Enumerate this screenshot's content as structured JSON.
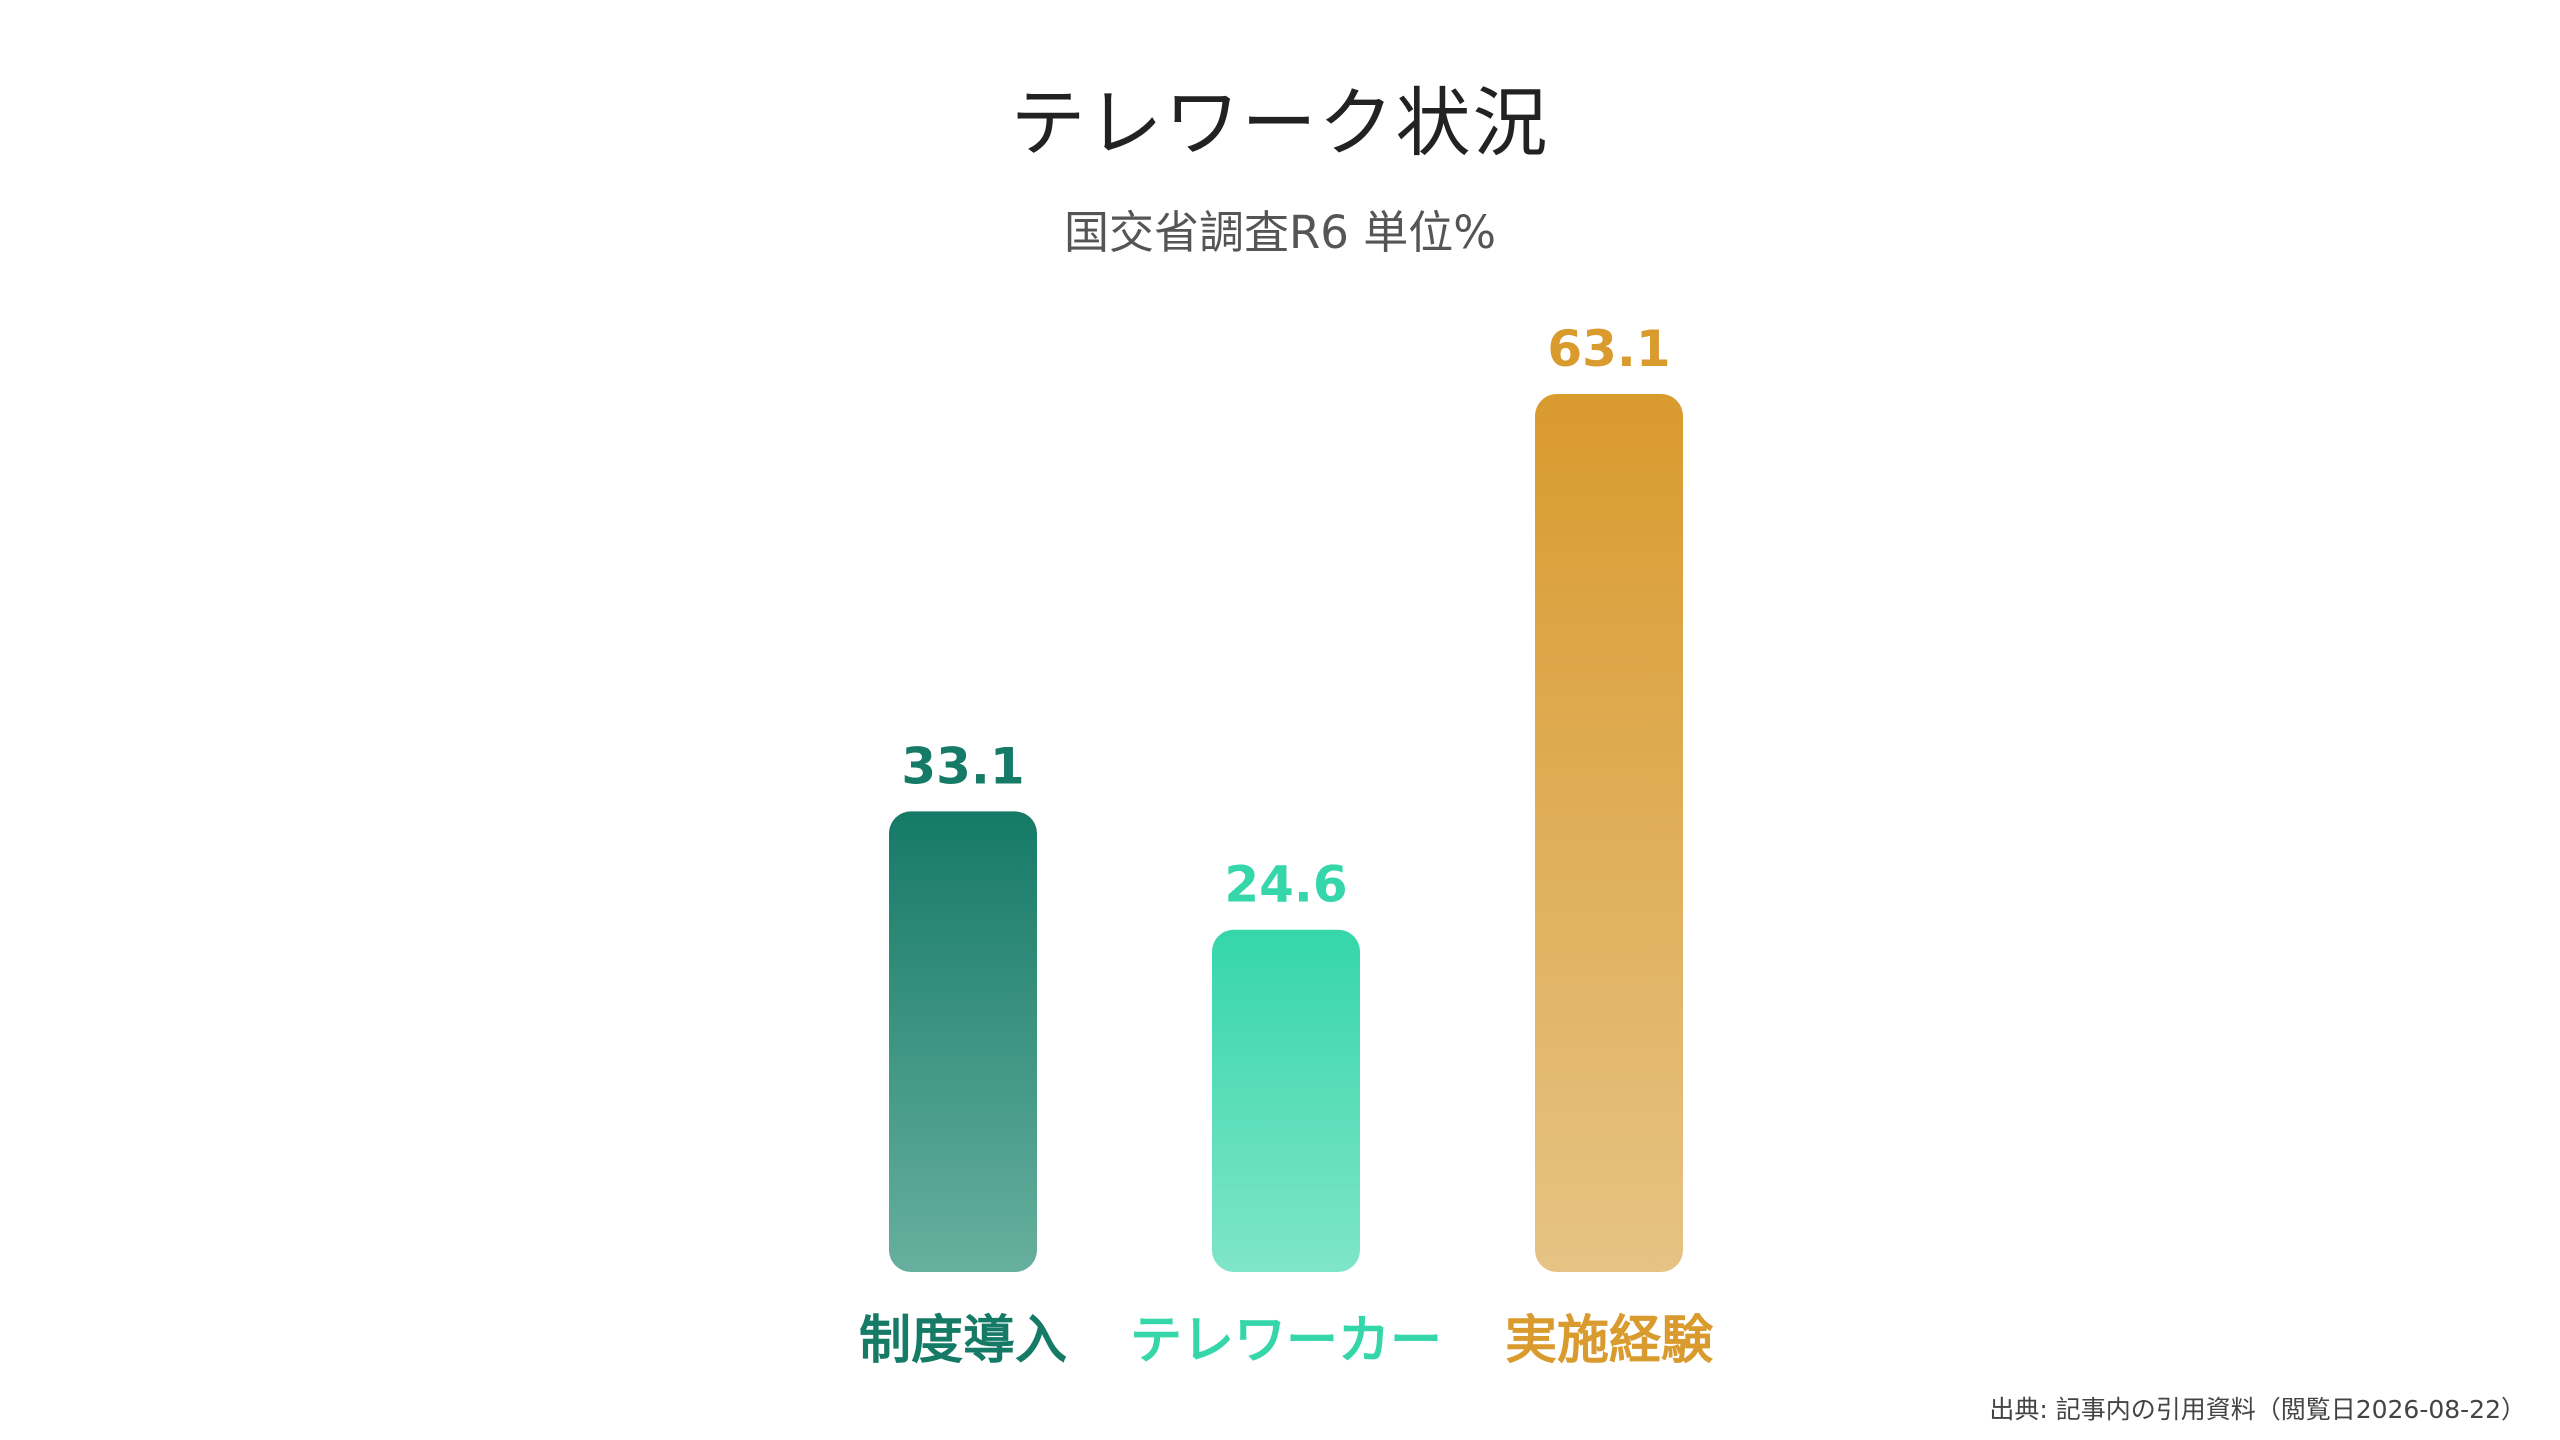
{
  "chart_data": {
    "type": "bar",
    "title": "テレワーク状況",
    "subtitle": "国交省調査R6 単位%",
    "categories": [
      "制度導入",
      "テレワーカー",
      "実施経験"
    ],
    "values": [
      33.1,
      24.6,
      63.1
    ],
    "value_labels": [
      "33.1",
      "24.6",
      "63.1"
    ],
    "colors": [
      "#157A66",
      "#35D6AA",
      "#D99A2E"
    ],
    "gradient_end_colors": [
      "#67AF9F",
      "#7FE5C9",
      "#E6C384"
    ],
    "ylim": [
      0,
      63.1
    ],
    "grid": false,
    "legend": "none"
  },
  "source_note": "出典: 記事内の引用資料（閲覧日2026-08-22）"
}
